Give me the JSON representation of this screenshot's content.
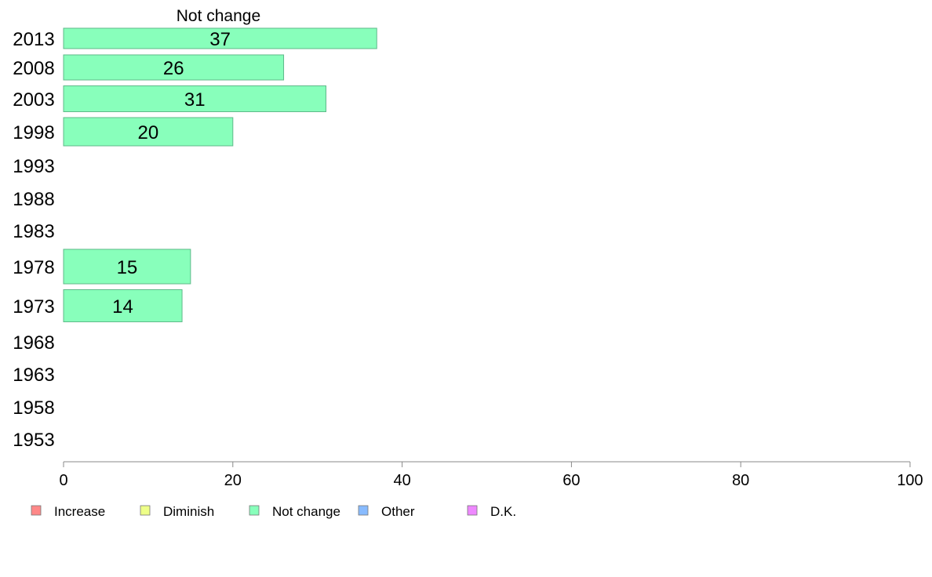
{
  "chart_data": {
    "type": "bar",
    "orientation": "horizontal",
    "title": "Not change",
    "categories": [
      "2013",
      "2008",
      "2003",
      "1998",
      "1993",
      "1988",
      "1983",
      "1978",
      "1973",
      "1968",
      "1963",
      "1958",
      "1953"
    ],
    "series": [
      {
        "name": "Not change",
        "color": "#88ffbb",
        "values": [
          37,
          26,
          31,
          20,
          null,
          null,
          null,
          15,
          14,
          null,
          null,
          null,
          null
        ]
      }
    ],
    "xlim": [
      0,
      100
    ],
    "xticks": [
      0,
      20,
      40,
      60,
      80,
      100
    ],
    "grid": false,
    "legend": {
      "placement": "bottom",
      "items": [
        {
          "label": "Increase",
          "color": "#ff8888"
        },
        {
          "label": "Diminish",
          "color": "#eeff88"
        },
        {
          "label": "Not change",
          "color": "#88ffbb"
        },
        {
          "label": "Other",
          "color": "#88bbff"
        },
        {
          "label": "D.K.",
          "color": "#ee88ff"
        }
      ]
    }
  }
}
